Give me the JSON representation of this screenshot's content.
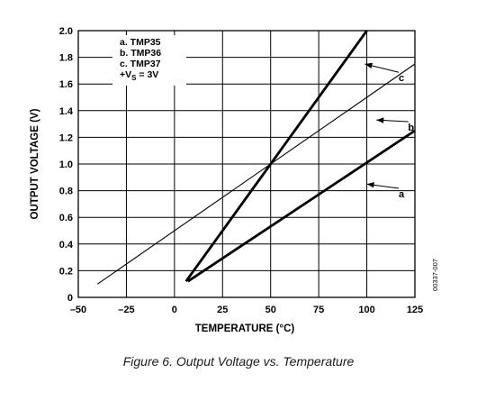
{
  "chart_data": {
    "type": "line",
    "xlabel": "TEMPERATURE (°C)",
    "ylabel": "OUTPUT VOLTAGE (V)",
    "xlim": [
      -50,
      125
    ],
    "ylim": [
      0,
      2.0
    ],
    "xticks": [
      -50,
      -25,
      0,
      25,
      50,
      75,
      100,
      125
    ],
    "xtick_labels": [
      "–50",
      "–25",
      "0",
      "25",
      "50",
      "75",
      "100",
      "125"
    ],
    "yticks": [
      0,
      0.2,
      0.4,
      0.6,
      0.8,
      1.0,
      1.2,
      1.4,
      1.6,
      1.8,
      2.0
    ],
    "ytick_labels": [
      "0",
      "0.2",
      "0.4",
      "0.6",
      "0.8",
      "1.0",
      "1.2",
      "1.4",
      "1.6",
      "1.8",
      "2.0"
    ],
    "grid": true,
    "legend_position": "top-left",
    "legend": [
      "a. TMP35",
      "b. TMP36",
      "c. TMP37"
    ],
    "legend_condition": {
      "main": "+V",
      "sub": "S",
      "rest": " = 3V"
    },
    "series": [
      {
        "label": "a",
        "x": [
          7,
          125
        ],
        "y": [
          0.12,
          1.25
        ],
        "stroke": "bold",
        "annotation": {
          "x": 118,
          "y": 0.75,
          "arrow_to": [
            100,
            0.85
          ]
        }
      },
      {
        "label": "b",
        "x": [
          -40,
          125
        ],
        "y": [
          0.1,
          1.75
        ],
        "stroke": "thin",
        "annotation": {
          "x": 123,
          "y": 1.25,
          "arrow_to": [
            105,
            1.33
          ]
        }
      },
      {
        "label": "c",
        "x": [
          6,
          100
        ],
        "y": [
          0.12,
          2.0
        ],
        "stroke": "bold",
        "annotation": {
          "x": 118,
          "y": 1.62,
          "arrow_to": [
            99,
            1.75
          ]
        }
      }
    ],
    "side_identifier": "00337-007"
  },
  "caption": "Figure 6. Output Voltage vs. Temperature",
  "colors": {
    "ink": "#000000",
    "caption": "#1a1a1a",
    "background": "#ffffff"
  }
}
